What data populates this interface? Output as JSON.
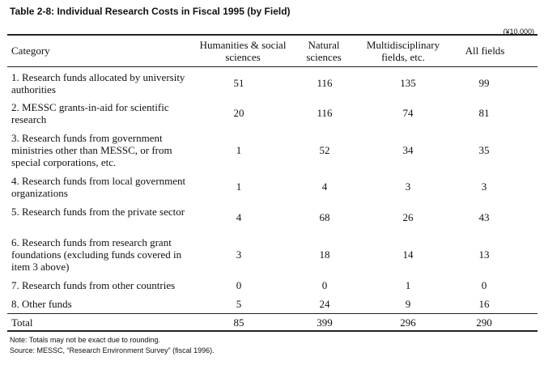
{
  "title": "Table 2-8: Individual Research Costs in Fiscal 1995 (by Field)",
  "unit": "(¥10,000)",
  "headers": {
    "category": "Category",
    "humanities": "Humanities & social sciences",
    "natural": "Natural sciences",
    "multi": "Multidisciplinary fields, etc.",
    "all": "All fields"
  },
  "rows": [
    {
      "category": "1. Research funds allocated by university authorities",
      "humanities": "51",
      "natural": "116",
      "multi": "135",
      "all": "99"
    },
    {
      "category": "2. MESSC grants-in-aid for scientific research",
      "humanities": "20",
      "natural": "116",
      "multi": "74",
      "all": "81"
    },
    {
      "category": "3. Research funds from government ministries other than MESSC, or from special corporations, etc.",
      "humanities": "1",
      "natural": "52",
      "multi": "34",
      "all": "35"
    },
    {
      "category": "4. Research funds from local government organizations",
      "humanities": "1",
      "natural": "4",
      "multi": "3",
      "all": "3"
    },
    {
      "category": "5. Research funds from the private sector",
      "humanities": "4",
      "natural": "68",
      "multi": "26",
      "all": "43"
    },
    {
      "category": "6. Research funds from research grant foundations (excluding funds covered in item 3 above)",
      "humanities": "3",
      "natural": "18",
      "multi": "14",
      "all": "13"
    },
    {
      "category": "7. Research funds from other countries",
      "humanities": "0",
      "natural": "0",
      "multi": "1",
      "all": "0"
    },
    {
      "category": "8. Other funds",
      "humanities": "5",
      "natural": "24",
      "multi": "9",
      "all": "16"
    }
  ],
  "total": {
    "category": "Total",
    "humanities": "85",
    "natural": "399",
    "multi": "296",
    "all": "290"
  },
  "note": "Note: Totals may not be exact due to rounding.",
  "source": "Source: MESSC, “Research Environment Survey” (fiscal 1996)."
}
